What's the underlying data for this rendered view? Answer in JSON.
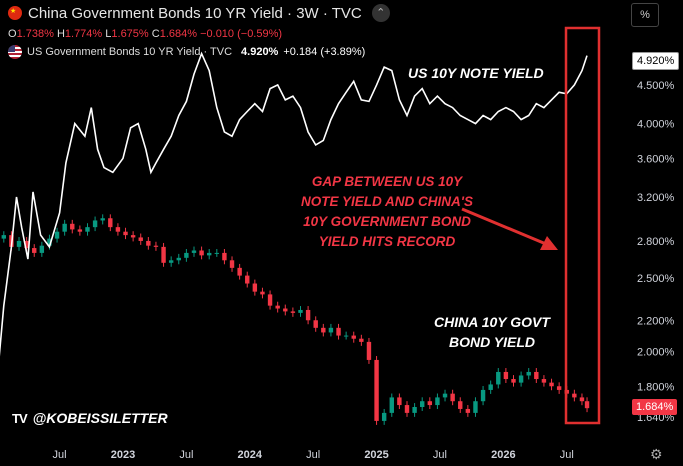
{
  "header": {
    "title": "China Government Bonds 10 YR Yield · 3W · TVC",
    "ohlc": [
      {
        "label": "O",
        "value": "1.738%"
      },
      {
        "label": "H",
        "value": "1.774%"
      },
      {
        "label": "L",
        "value": "1.675%"
      },
      {
        "label": "C",
        "value": "1.684%"
      }
    ],
    "change": "−0.010 (−0.59%)",
    "us_name": "US Government Bonds 10 YR Yield · TVC",
    "us_price": "4.920%",
    "us_change": "+0.184 (+3.89%)"
  },
  "controls": {
    "scale_button": "%",
    "collapse_icon": "chevron-up-icon",
    "settings_icon": "gear-icon"
  },
  "annotations": {
    "us_label": "US 10Y NOTE YIELD",
    "gap_lines": [
      "GAP BETWEEN US 10Y",
      "NOTE YIELD AND CHINA'S",
      "10Y GOVERNMENT BOND",
      "YIELD HITS RECORD"
    ],
    "cn_lines": [
      "CHINA 10Y GOVT",
      "BOND YIELD"
    ]
  },
  "watermark": {
    "logo": "TV",
    "handle": "@KOBEISSILETTER"
  },
  "price_tags": {
    "us": "4.920%",
    "cn": "1.684%"
  },
  "colors": {
    "up": "#089981",
    "down": "#f23645",
    "us_line": "#ffffff",
    "highlight": "#e03030",
    "background": "#000000"
  },
  "chart_data": {
    "type": "line",
    "scale": "log",
    "y_ticks": [
      "4.920%",
      "4.500%",
      "4.000%",
      "3.600%",
      "3.200%",
      "2.800%",
      "2.500%",
      "2.200%",
      "2.000%",
      "1.800%",
      "1.684%",
      "1.640%"
    ],
    "y_tick_values": [
      4.92,
      4.5,
      4.0,
      3.6,
      3.2,
      2.8,
      2.5,
      2.2,
      2.0,
      1.8,
      1.684,
      1.64
    ],
    "x_ticks": [
      "Jul",
      "2023",
      "Jul",
      "2024",
      "Jul",
      "2025",
      "Jul",
      "2026",
      "Jul"
    ],
    "x_tick_dates": [
      2022.5,
      2023.0,
      2023.5,
      2024.0,
      2024.5,
      2025.0,
      2025.5,
      2026.0,
      2026.5
    ],
    "x_range": [
      2022.03,
      2026.92
    ],
    "ylim": [
      1.6,
      5.35
    ],
    "series": [
      {
        "name": "US Government Bonds 10 YR Yield",
        "style": "line",
        "x": [
          2022.0,
          2022.06,
          2022.12,
          2022.16,
          2022.2,
          2022.25,
          2022.29,
          2022.35,
          2022.42,
          2022.5,
          2022.55,
          2022.62,
          2022.7,
          2022.75,
          2022.8,
          2022.85,
          2022.92,
          2023.0,
          2023.06,
          2023.12,
          2023.18,
          2023.22,
          2023.26,
          2023.32,
          2023.38,
          2023.44,
          2023.5,
          2023.56,
          2023.62,
          2023.68,
          2023.74,
          2023.8,
          2023.86,
          2023.92,
          2023.98,
          2024.04,
          2024.1,
          2024.16,
          2024.22,
          2024.28,
          2024.34,
          2024.4,
          2024.46,
          2024.52,
          2024.58,
          2024.64,
          2024.7,
          2024.76,
          2024.82,
          2024.88,
          2024.94,
          2025.0,
          2025.06,
          2025.12,
          2025.18,
          2025.24,
          2025.3,
          2025.36,
          2025.42,
          2025.48,
          2025.54,
          2025.6,
          2025.66,
          2025.72,
          2025.78,
          2025.84,
          2025.9,
          2025.96,
          2026.02,
          2026.08,
          2026.14,
          2026.2,
          2026.26,
          2026.32,
          2026.38,
          2026.44,
          2026.5,
          2026.56,
          2026.62,
          2026.66
        ],
        "values": [
          1.78,
          2.3,
          2.75,
          3.2,
          2.92,
          2.65,
          3.25,
          2.85,
          2.75,
          3.05,
          3.55,
          4.0,
          3.85,
          4.2,
          3.7,
          3.5,
          3.45,
          3.6,
          3.95,
          4.0,
          3.7,
          3.45,
          3.55,
          3.7,
          3.85,
          4.1,
          4.28,
          4.65,
          4.95,
          4.7,
          4.2,
          3.9,
          3.85,
          4.05,
          4.15,
          4.25,
          4.15,
          4.45,
          4.5,
          4.3,
          4.35,
          4.2,
          3.9,
          3.75,
          3.8,
          4.05,
          4.25,
          4.4,
          4.55,
          4.3,
          4.28,
          4.5,
          4.75,
          4.7,
          4.3,
          4.1,
          4.35,
          4.45,
          4.25,
          4.35,
          4.25,
          4.2,
          4.1,
          4.05,
          4.0,
          4.1,
          4.05,
          4.15,
          4.2,
          4.15,
          4.05,
          4.1,
          4.25,
          4.2,
          4.3,
          4.4,
          4.38,
          4.5,
          4.7,
          4.92
        ]
      },
      {
        "name": "China Government Bonds 10 YR Yield",
        "style": "candlestick",
        "x": [
          2022.0,
          2022.06,
          2022.12,
          2022.18,
          2022.24,
          2022.3,
          2022.36,
          2022.42,
          2022.48,
          2022.54,
          2022.6,
          2022.66,
          2022.72,
          2022.78,
          2022.84,
          2022.9,
          2022.96,
          2023.02,
          2023.08,
          2023.14,
          2023.2,
          2023.26,
          2023.32,
          2023.38,
          2023.44,
          2023.5,
          2023.56,
          2023.62,
          2023.68,
          2023.74,
          2023.8,
          2023.86,
          2023.92,
          2023.98,
          2024.04,
          2024.1,
          2024.16,
          2024.22,
          2024.28,
          2024.34,
          2024.4,
          2024.46,
          2024.52,
          2024.58,
          2024.64,
          2024.7,
          2024.76,
          2024.82,
          2024.88,
          2024.94,
          2025.0,
          2025.06,
          2025.12,
          2025.18,
          2025.24,
          2025.3,
          2025.36,
          2025.42,
          2025.48,
          2025.54,
          2025.6,
          2025.66,
          2025.72,
          2025.78,
          2025.84,
          2025.9,
          2025.96,
          2026.02,
          2026.08,
          2026.14,
          2026.2,
          2026.26,
          2026.32,
          2026.38,
          2026.44,
          2026.5,
          2026.56,
          2026.62,
          2026.66
        ],
        "values": [
          2.82,
          2.85,
          2.75,
          2.8,
          2.74,
          2.7,
          2.76,
          2.82,
          2.88,
          2.95,
          2.9,
          2.88,
          2.92,
          2.98,
          3.0,
          2.92,
          2.88,
          2.85,
          2.83,
          2.8,
          2.76,
          2.75,
          2.62,
          2.64,
          2.66,
          2.7,
          2.72,
          2.68,
          2.7,
          2.7,
          2.64,
          2.58,
          2.52,
          2.46,
          2.4,
          2.38,
          2.3,
          2.28,
          2.26,
          2.25,
          2.27,
          2.2,
          2.15,
          2.12,
          2.15,
          2.1,
          2.1,
          2.08,
          2.06,
          1.95,
          1.62,
          1.66,
          1.74,
          1.7,
          1.66,
          1.69,
          1.72,
          1.7,
          1.74,
          1.76,
          1.72,
          1.68,
          1.66,
          1.72,
          1.78,
          1.81,
          1.88,
          1.84,
          1.82,
          1.86,
          1.88,
          1.84,
          1.82,
          1.8,
          1.78,
          1.76,
          1.74,
          1.72,
          1.684
        ]
      }
    ],
    "legend": "top-left",
    "grid": false
  }
}
